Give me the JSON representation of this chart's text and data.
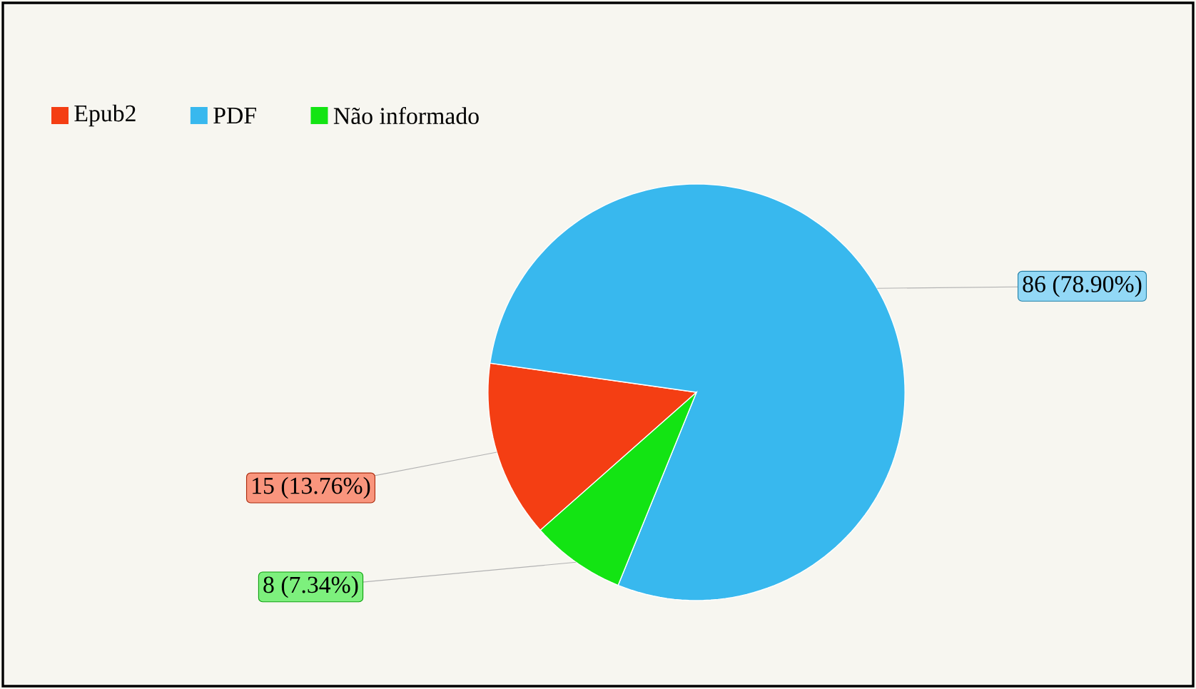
{
  "chart_data": {
    "type": "pie",
    "categories": [
      "Epub2",
      "PDF",
      "Não informado"
    ],
    "values": [
      15,
      86,
      8
    ],
    "colors": [
      "#f43e13",
      "#38b8ee",
      "#13e413"
    ],
    "value_labels": [
      "15 (13.76%)",
      "86 (78.90%)",
      "8 (7.34%)"
    ],
    "legend": "top left"
  }
}
